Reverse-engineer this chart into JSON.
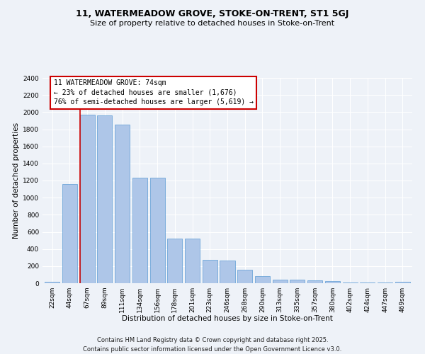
{
  "title1": "11, WATERMEADOW GROVE, STOKE-ON-TRENT, ST1 5GJ",
  "title2": "Size of property relative to detached houses in Stoke-on-Trent",
  "xlabel": "Distribution of detached houses by size in Stoke-on-Trent",
  "ylabel": "Number of detached properties",
  "bin_labels": [
    "22sqm",
    "44sqm",
    "67sqm",
    "89sqm",
    "111sqm",
    "134sqm",
    "156sqm",
    "178sqm",
    "201sqm",
    "223sqm",
    "246sqm",
    "268sqm",
    "290sqm",
    "313sqm",
    "335sqm",
    "357sqm",
    "380sqm",
    "402sqm",
    "424sqm",
    "447sqm",
    "469sqm"
  ],
  "bar_values": [
    20,
    1160,
    1970,
    1960,
    1850,
    1230,
    1230,
    520,
    520,
    275,
    265,
    155,
    80,
    40,
    40,
    30,
    22,
    10,
    5,
    5,
    15
  ],
  "bar_color": "#aec6e8",
  "bar_edge_color": "#5b9bd5",
  "annotation_line1": "11 WATERMEADOW GROVE: 74sqm",
  "annotation_line2": "← 23% of detached houses are smaller (1,676)",
  "annotation_line3": "76% of semi-detached houses are larger (5,619) →",
  "annotation_box_color": "#ffffff",
  "annotation_box_edge_color": "#cc0000",
  "ylim": [
    0,
    2400
  ],
  "yticks": [
    0,
    200,
    400,
    600,
    800,
    1000,
    1200,
    1400,
    1600,
    1800,
    2000,
    2200,
    2400
  ],
  "vline_color": "#cc0000",
  "vline_x": 1.58,
  "bg_color": "#eef2f8",
  "grid_color": "#ffffff",
  "footer": "Contains HM Land Registry data © Crown copyright and database right 2025.\nContains public sector information licensed under the Open Government Licence v3.0.",
  "title_fontsize": 9,
  "subtitle_fontsize": 8,
  "axis_label_fontsize": 7.5,
  "tick_fontsize": 6.5,
  "annot_fontsize": 7,
  "footer_fontsize": 6
}
